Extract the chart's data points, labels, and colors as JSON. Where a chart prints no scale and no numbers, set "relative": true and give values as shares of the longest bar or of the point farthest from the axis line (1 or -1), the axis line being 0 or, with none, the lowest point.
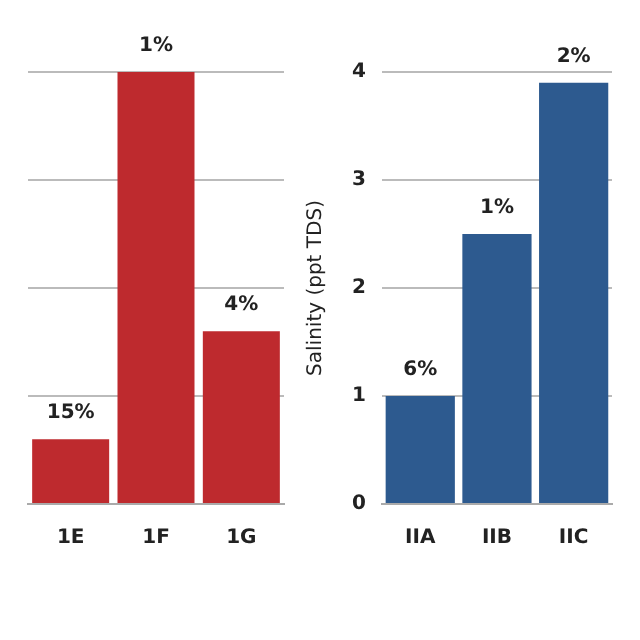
{
  "chart_data": [
    {
      "type": "bar",
      "relative": true,
      "categories": [
        "1E",
        "1F",
        "1G"
      ],
      "values": [
        0.15,
        1,
        0.4
      ],
      "color": "#be2a2e",
      "grid": "y",
      "annotations": [
        {
          "text": "15%",
          "x": "1E",
          "y": 0.15
        },
        {
          "text": "1%",
          "x": "1F",
          "y": 1
        },
        {
          "text": "4%",
          "x": "1G",
          "y": 0.4
        }
      ]
    },
    {
      "type": "bar",
      "ylabel": "Salinity (ppt TDS)",
      "categories": [
        "IIA",
        "IIB",
        "IIC"
      ],
      "values": [
        1,
        2.5,
        3.9
      ],
      "color": "#2d5a8f",
      "ylim": [
        0,
        4
      ],
      "yticks": [
        0,
        1,
        2,
        3,
        4
      ],
      "grid": "y",
      "annotations": [
        {
          "text": "6%",
          "x": "IIA",
          "y": 1
        },
        {
          "text": "1%",
          "x": "IIB",
          "y": 2.5
        },
        {
          "text": "2%",
          "x": "IIC",
          "y": 3.9
        }
      ]
    }
  ]
}
